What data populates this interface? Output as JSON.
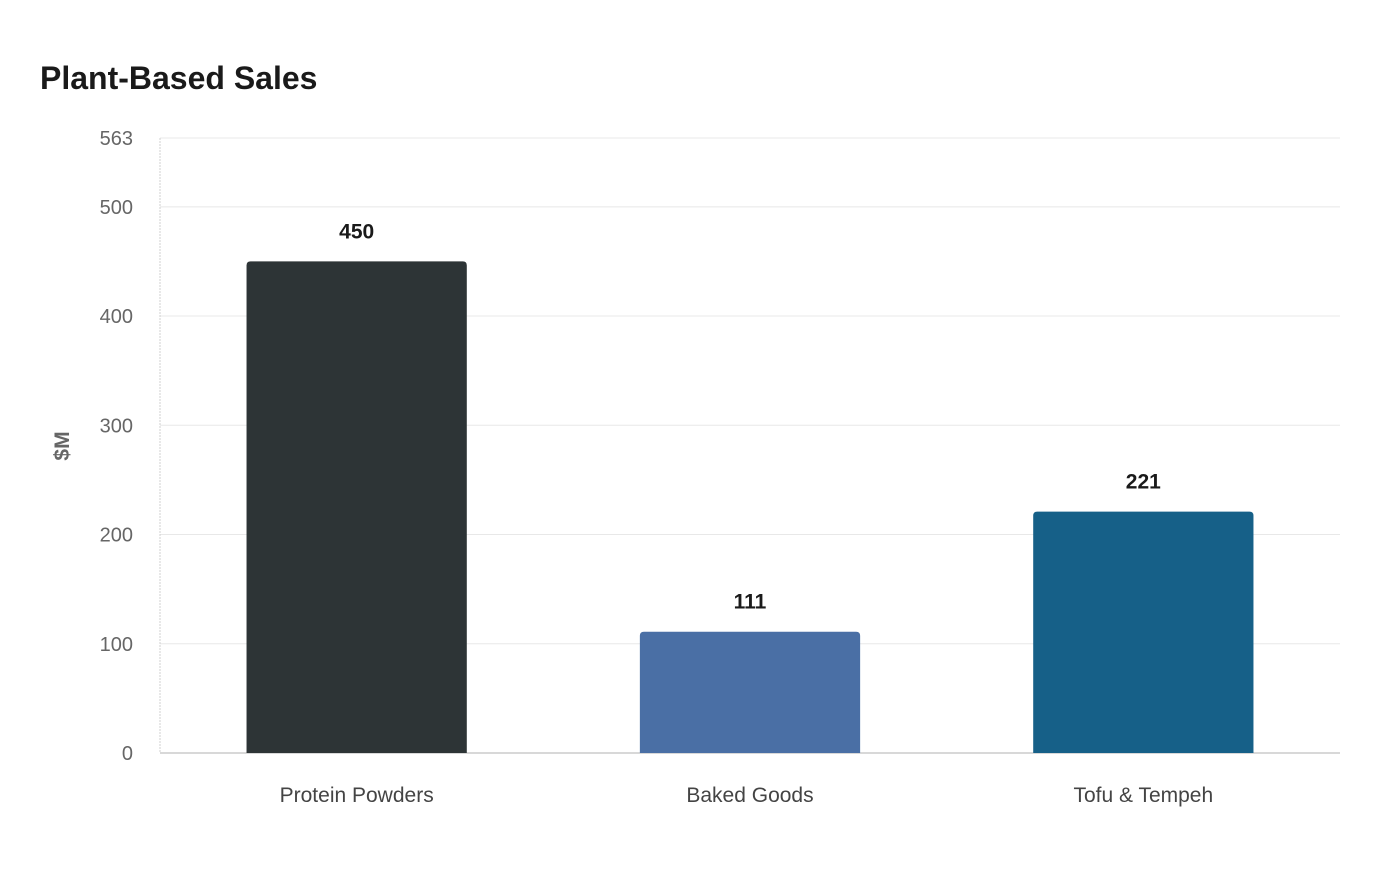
{
  "chart_data": {
    "type": "bar",
    "title": "Plant-Based Sales",
    "xlabel": "",
    "ylabel": "$M",
    "categories": [
      "Protein Powders",
      "Baked Goods",
      "Tofu & Tempeh"
    ],
    "values": [
      450,
      111,
      221
    ],
    "colors": [
      "#2d3436",
      "#4a6fa5",
      "#166088"
    ],
    "ylim": [
      0,
      563
    ],
    "yticks": [
      0,
      100,
      200,
      300,
      400,
      500,
      563
    ],
    "grid": true,
    "legend": "none"
  }
}
